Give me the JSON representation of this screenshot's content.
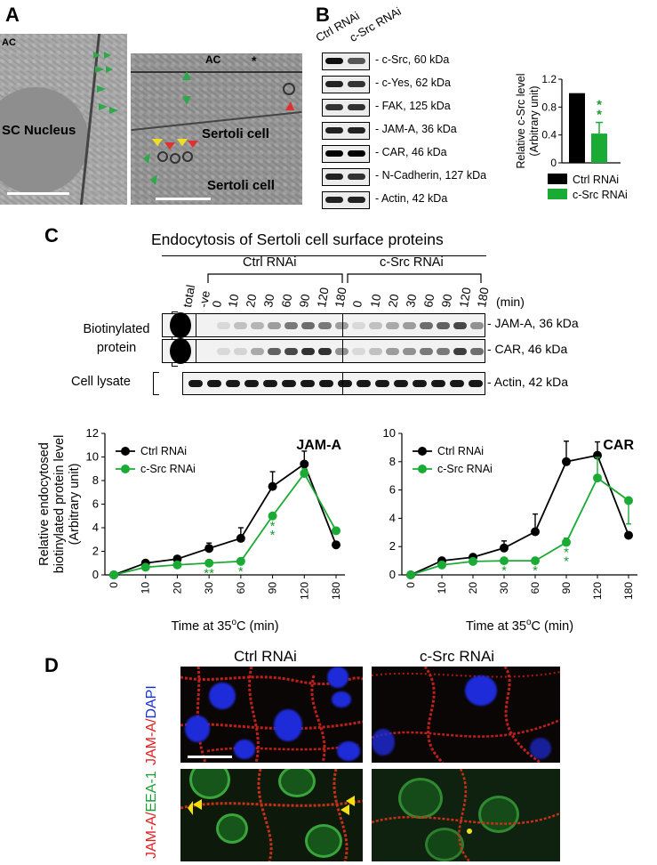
{
  "panels": {
    "a": "A",
    "b": "B",
    "c": "C",
    "d": "D"
  },
  "panel_a": {
    "left_labels": [
      "AC",
      "SC Nucleus"
    ],
    "right_labels": [
      "AC",
      "*",
      "Sertoli cell",
      "Sertoli cell"
    ]
  },
  "panel_b": {
    "lane_labels": [
      "Ctrl RNAi",
      "c-Src RNAi"
    ],
    "blots": [
      "c-Src, 60 kDa",
      "c-Yes, 62 kDa",
      "FAK, 125 kDa",
      "JAM-A, 36 kDa",
      "CAR, 46 kDa",
      "N-Cadherin, 127 kDa",
      "Actin, 42 kDa"
    ]
  },
  "panel_c": {
    "title": "Endocytosis of Sertoli cell surface proteins",
    "group_ctrl": "Ctrl RNAi",
    "group_src": "c-Src RNAi",
    "lanes_prefix": [
      "total",
      "-ve"
    ],
    "lane_times": [
      "0",
      "10",
      "20",
      "30",
      "60",
      "90",
      "120",
      "180"
    ],
    "min_label": "(min)",
    "row_group_biot": "Biotinylated protein",
    "row_group_lysate": "Cell lysate",
    "blot_labels": [
      "- JAM-A, 36 kDa",
      "- CAR, 46 kDa",
      "- Actin, 42 kDa"
    ]
  },
  "panel_d": {
    "col_ctrl": "Ctrl RNAi",
    "col_src": "c-Src RNAi",
    "row1_a": "JAM-A/",
    "row1_b": "DAPI",
    "row2_a": "JAM-A/",
    "row2_b": "EEA-1"
  },
  "colors": {
    "ctrl": "#000000",
    "src": "#1aab35",
    "sig": "#1a9a30"
  },
  "chart_data": [
    {
      "type": "bar",
      "title": "",
      "ylabel": "Relative c-Src level (Arbitrary unit)",
      "categories": [
        "Ctrl RNAi",
        "c-Src RNAi"
      ],
      "values": [
        1.0,
        0.42
      ],
      "errors": [
        0,
        0.16
      ],
      "ylim": [
        0,
        1.2
      ],
      "yticks": [
        "0",
        "0.4",
        "0.8",
        "1.2"
      ],
      "significance": "**",
      "legend": [
        "Ctrl RNAi",
        "c-Src RNAi"
      ]
    },
    {
      "type": "line",
      "title": "JAM-A",
      "xlabel": "Time at 35°C (min)",
      "ylabel": "Relative endocytosed biotinylated protein level (Arbitrary unit)",
      "x": [
        "0",
        "10",
        "20",
        "30",
        "60",
        "90",
        "120",
        "180"
      ],
      "ylim": [
        0,
        12
      ],
      "yticks": [
        "0",
        "2",
        "4",
        "6",
        "8",
        "10",
        "12"
      ],
      "series": [
        {
          "name": "Ctrl RNAi",
          "values": [
            0,
            1.0,
            1.35,
            2.25,
            3.1,
            7.5,
            9.4,
            2.55
          ],
          "errors": [
            0,
            0.15,
            0.25,
            0.45,
            0.9,
            1.25,
            1.1,
            0.25
          ]
        },
        {
          "name": "c-Src RNAi",
          "values": [
            0,
            0.65,
            0.85,
            1.0,
            1.15,
            5.0,
            8.6,
            3.75
          ],
          "errors": [
            0,
            0,
            0,
            0,
            0,
            0,
            0.4,
            0
          ]
        }
      ],
      "significance": [
        "",
        "",
        "",
        "**",
        "*",
        "**",
        "",
        ""
      ]
    },
    {
      "type": "line",
      "title": "CAR",
      "xlabel": "Time at 35°C (min)",
      "ylabel": "",
      "x": [
        "0",
        "10",
        "20",
        "30",
        "60",
        "90",
        "120",
        "180"
      ],
      "ylim": [
        0,
        10
      ],
      "yticks": [
        "0",
        "2",
        "4",
        "6",
        "8",
        "10"
      ],
      "series": [
        {
          "name": "Ctrl RNAi",
          "values": [
            0,
            1.0,
            1.25,
            1.9,
            3.05,
            8.0,
            8.45,
            2.8
          ],
          "errors": [
            0,
            0.15,
            0.2,
            0.5,
            1.25,
            1.45,
            0.95,
            0
          ]
        },
        {
          "name": "c-Src RNAi",
          "values": [
            0,
            0.7,
            0.95,
            1.0,
            1.0,
            2.3,
            6.85,
            5.25
          ],
          "errors": [
            0,
            0,
            0,
            0,
            0,
            0.3,
            1.45,
            1.65
          ]
        }
      ],
      "significance": [
        "",
        "",
        "",
        "*",
        "*",
        "**",
        "",
        ""
      ]
    }
  ]
}
